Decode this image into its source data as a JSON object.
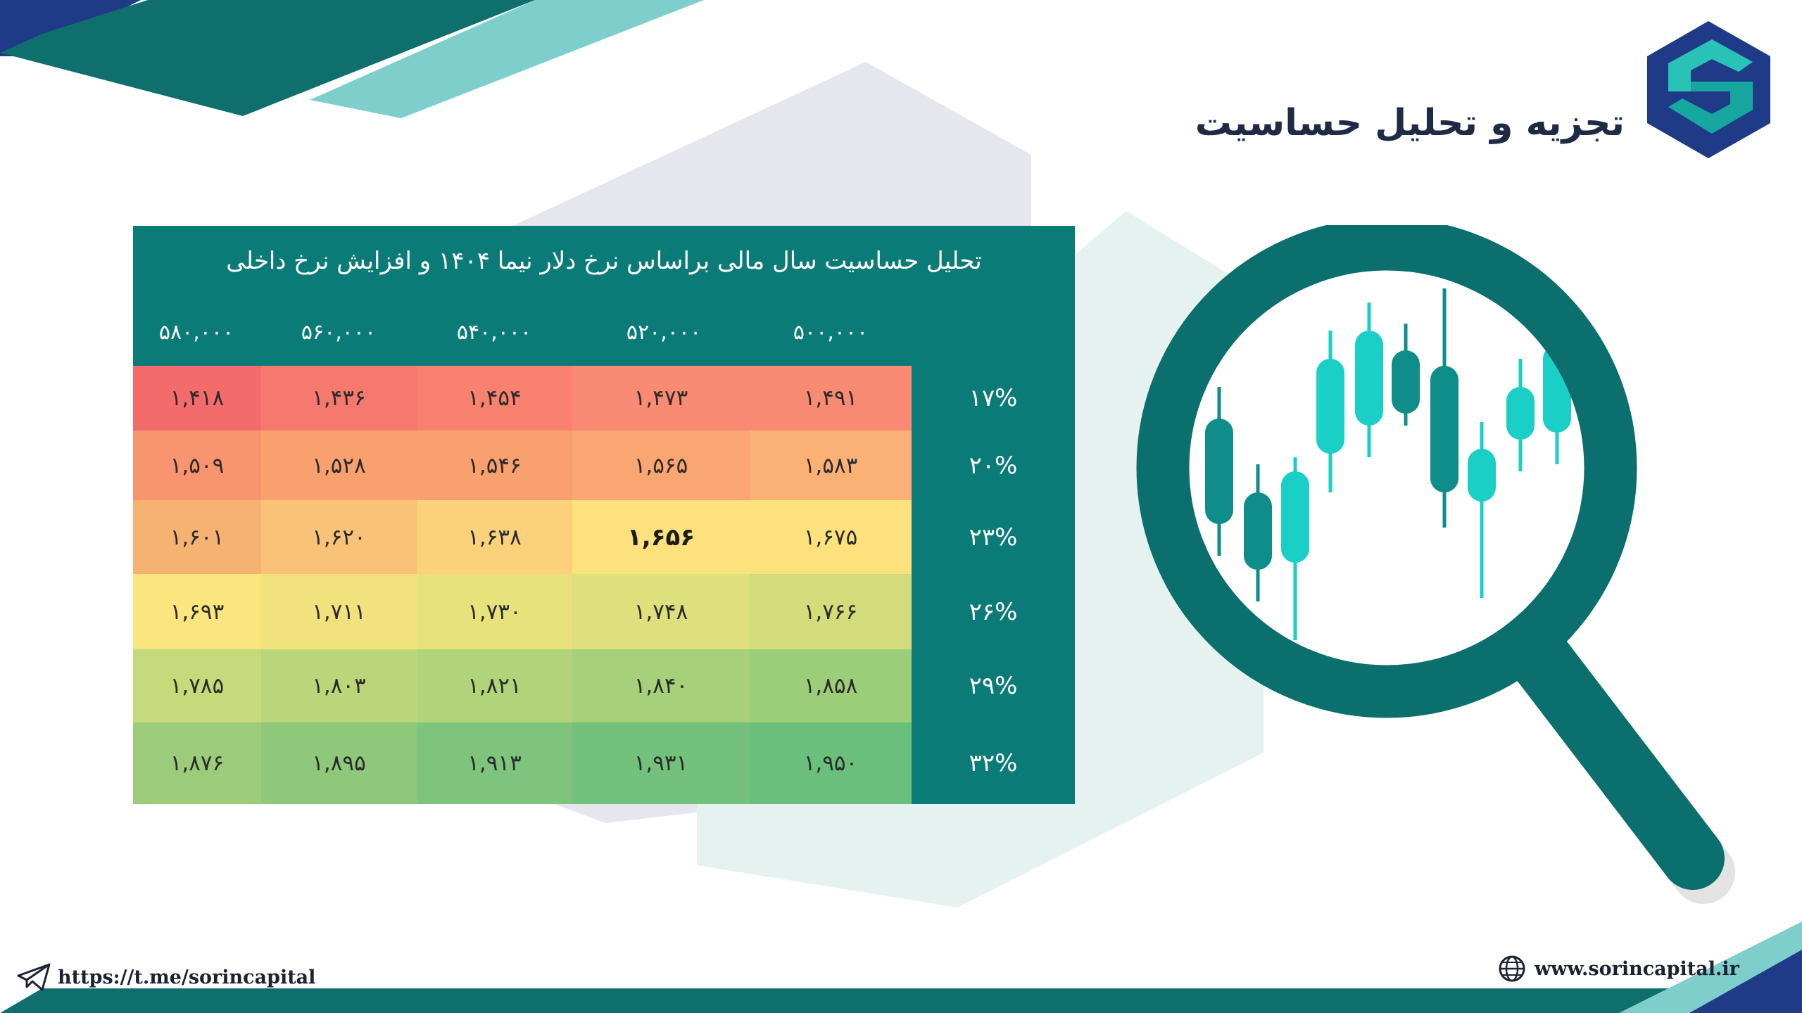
{
  "header": {
    "title": "تجزیه و تحلیل حساسیت",
    "logo_icon": "sorin-capital-logo"
  },
  "colors": {
    "teal_dark": "#0b7b78",
    "teal_light": "#7ecfcc",
    "navy": "#1f3a86",
    "heat_red": "#f36b6b",
    "heat_yellow": "#fde27f",
    "heat_green": "#6cc07d"
  },
  "table": {
    "caption": "تحلیل حساسیت سال مالی براساس نرخ دلار نیما ۱۴۰۴ و افزایش نرخ داخلی",
    "column_headers": [
      "۵۰۰,۰۰۰",
      "۵۲۰,۰۰۰",
      "۵۴۰,۰۰۰",
      "۵۶۰,۰۰۰",
      "۵۸۰,۰۰۰"
    ],
    "row_headers": [
      "۱۷%",
      "۲۰%",
      "۲۳%",
      "۲۶%",
      "۲۹%",
      "۳۲%"
    ],
    "rows": [
      [
        "۱,۴۹۱",
        "۱,۴۷۳",
        "۱,۴۵۴",
        "۱,۴۳۶",
        "۱,۴۱۸"
      ],
      [
        "۱,۵۸۳",
        "۱,۵۶۵",
        "۱,۵۴۶",
        "۱,۵۲۸",
        "۱,۵۰۹"
      ],
      [
        "۱,۶۷۵",
        "۱,۶۵۶",
        "۱,۶۳۸",
        "۱,۶۲۰",
        "۱,۶۰۱"
      ],
      [
        "۱,۷۶۶",
        "۱,۷۴۸",
        "۱,۷۳۰",
        "۱,۷۱۱",
        "۱,۶۹۳"
      ],
      [
        "۱,۸۵۸",
        "۱,۸۴۰",
        "۱,۸۲۱",
        "۱,۸۰۳",
        "۱,۷۸۵"
      ],
      [
        "۱,۹۵۰",
        "۱,۹۳۱",
        "۱,۹۱۳",
        "۱,۸۹۵",
        "۱,۸۷۶"
      ]
    ],
    "highlighted_cell": {
      "row": 2,
      "col": 1
    },
    "cell_colors": [
      [
        "#f98a74",
        "#f98a74",
        "#f8826f",
        "#f67970",
        "#f46b6c"
      ],
      [
        "#fbb176",
        "#faa673",
        "#f9a06f",
        "#f9a06f",
        "#f8946f"
      ],
      [
        "#fde17c",
        "#fde17c",
        "#fbd27b",
        "#f9c279",
        "#f6b271"
      ],
      [
        "#d3dc7b",
        "#dde07c",
        "#e8e27d",
        "#f1e27d",
        "#fbe57f"
      ],
      [
        "#9ccd78",
        "#a6d17a",
        "#b1d47a",
        "#bbd67a",
        "#c6d97b"
      ],
      [
        "#6bbf7d",
        "#73c17c",
        "#7ec47c",
        "#8ec87b",
        "#9ccc7b"
      ]
    ]
  },
  "illustration": {
    "icon": "magnifier-candlestick-icon"
  },
  "footer": {
    "telegram_icon": "telegram-icon",
    "telegram_link": "https://t.me/sorincapital",
    "globe_icon": "globe-icon",
    "website": "www.sorincapital.ir"
  }
}
